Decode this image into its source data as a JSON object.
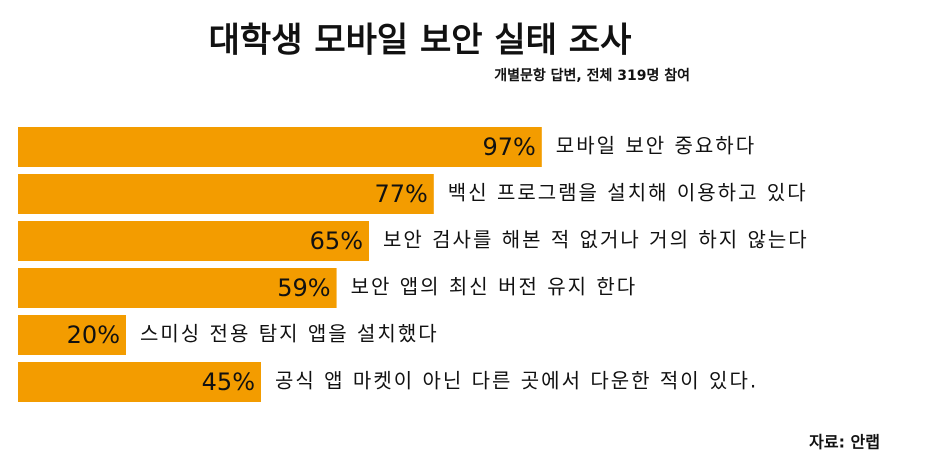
{
  "chart_data": {
    "type": "bar",
    "orientation": "horizontal",
    "title": "대학생 모바일 보안 실태 조사",
    "subtitle": "개별문항 답변, 전체 319명 참여",
    "categories": [
      "모바일 보안 중요하다",
      "백신 프로그램을 설치해 이용하고 있다",
      "보안 검사를 해본 적 없거나 거의 하지 않는다",
      "보안 앱의 최신 버전 유지 한다",
      "스미싱 전용 탐지 앱을 설치했다",
      "공식 앱 마켓이 아닌 다른 곳에서 다운한 적이 있다."
    ],
    "values": [
      97,
      77,
      65,
      59,
      20,
      45
    ],
    "value_labels": [
      "97%",
      "77%",
      "65%",
      "59%",
      "20%",
      "45%"
    ],
    "color": "#f39c00",
    "source": "자료: 안랩"
  }
}
